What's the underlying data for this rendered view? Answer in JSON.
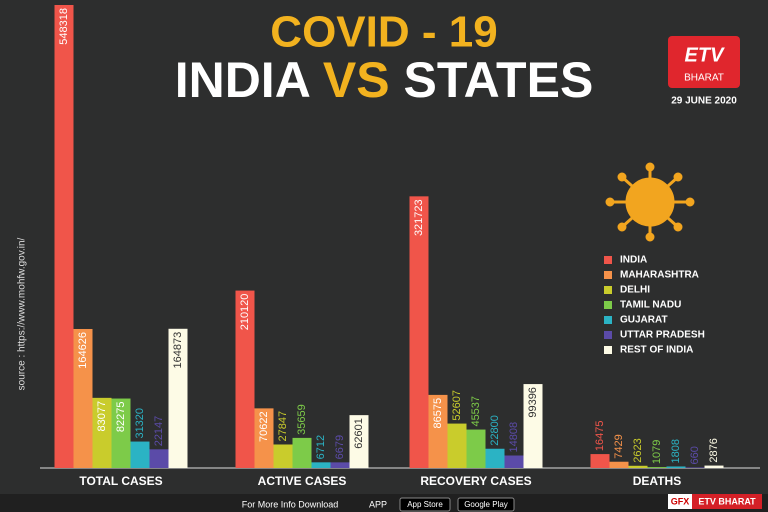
{
  "chart_data": {
    "type": "bar",
    "title": "COVID - 19",
    "subtitle": [
      "INDIA",
      "VS",
      "STATES"
    ],
    "categories": [
      "TOTAL CASES",
      "ACTIVE CASES",
      "RECOVERY CASES",
      "DEATHS"
    ],
    "series": [
      {
        "name": "INDIA",
        "color": "#f0554a",
        "values": [
          548318,
          210120,
          321723,
          16475
        ]
      },
      {
        "name": "MAHARASHTRA",
        "color": "#f5924a",
        "values": [
          164626,
          70622,
          86575,
          7429
        ]
      },
      {
        "name": "DELHI",
        "color": "#c9cc2c",
        "values": [
          83077,
          27847,
          52607,
          2623
        ]
      },
      {
        "name": "TAMIL NADU",
        "color": "#7dcb49",
        "values": [
          82275,
          35659,
          45537,
          1079
        ]
      },
      {
        "name": "GUJARAT",
        "color": "#2bb3c4",
        "values": [
          31320,
          6712,
          22800,
          1808
        ]
      },
      {
        "name": "UTTAR PRADESH",
        "color": "#5b4ba8",
        "values": [
          22147,
          6679,
          14808,
          660
        ]
      },
      {
        "name": "REST OF INDIA",
        "color": "#fdfbe6",
        "values": [
          164873,
          62601,
          99396,
          2876
        ]
      }
    ],
    "legend": "right"
  },
  "header": {
    "date": "29 JUNE 2020",
    "logo": "ETV",
    "logo_sub": "BHARAT"
  },
  "source": "source : https://www.mohfw.gov.in/",
  "footer": {
    "info": "For More Info Download",
    "app": "APP",
    "app_store": "App Store",
    "google_play": "Google Play",
    "gfx": "GFX",
    "brand": "ETV BHARAT"
  }
}
